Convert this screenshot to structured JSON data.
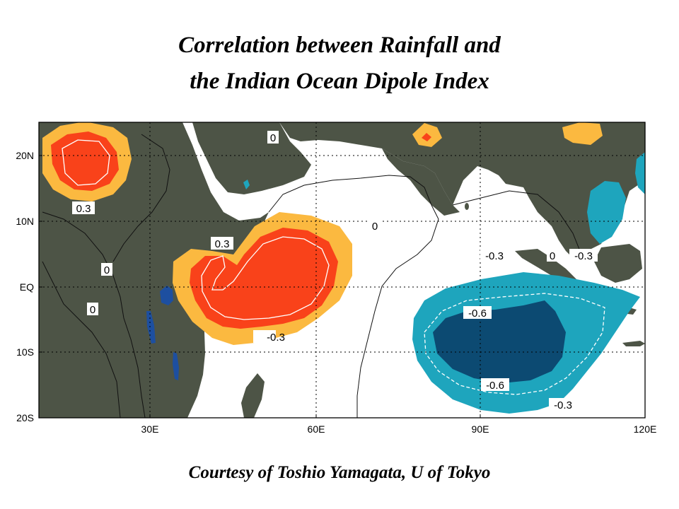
{
  "title_line1": "Correlation between Rainfall and",
  "title_line2": "the Indian Ocean Dipole Index",
  "credit": "Courtesy of  Toshio Yamagata, U of Tokyo",
  "lat_labels": [
    "20N",
    "10N",
    "EQ",
    "10S",
    "20S"
  ],
  "lon_labels": [
    "30E",
    "60E",
    "90E",
    "120E"
  ],
  "contour_labels": {
    "zero": "0",
    "pos_03": "0.3",
    "neg_03": "-0.3",
    "neg_06": "-0.6"
  },
  "colors": {
    "land": "#4d5446",
    "ocean": "#ffffff",
    "pos_low": "#fbb940",
    "pos_high": "#f9421a",
    "neg_low": "#1ea5bd",
    "neg_high": "#0c4a72",
    "lake": "#1d4fa0"
  }
}
